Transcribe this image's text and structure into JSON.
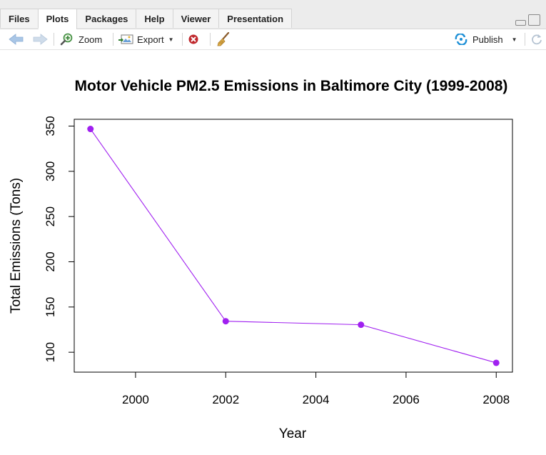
{
  "tabs": [
    {
      "label": "Files",
      "active": false
    },
    {
      "label": "Plots",
      "active": true
    },
    {
      "label": "Packages",
      "active": false
    },
    {
      "label": "Help",
      "active": false
    },
    {
      "label": "Viewer",
      "active": false
    },
    {
      "label": "Presentation",
      "active": false
    }
  ],
  "toolbar": {
    "zoom_label": "Zoom",
    "export_label": "Export",
    "publish_label": "Publish"
  },
  "icons": {
    "back": "arrow-left-icon",
    "forward": "arrow-right-icon",
    "zoom": "zoom-icon",
    "export": "export-icon",
    "remove": "remove-plot-icon",
    "clear": "broom-icon",
    "publish": "publish-icon",
    "refresh": "refresh-icon"
  },
  "colors": {
    "series": "#a020f0",
    "accent_publish": "#1c8fd6",
    "remove_red": "#c0282d"
  },
  "chart_data": {
    "type": "line",
    "title": "Motor Vehicle PM2.5 Emissions in Baltimore City (1999-2008)",
    "xlabel": "Year",
    "ylabel": "Total Emissions (Tons)",
    "x": [
      1999,
      2002,
      2005,
      2008
    ],
    "y": [
      346.8,
      134.3,
      130.4,
      88.3
    ],
    "xlim": [
      1998.64,
      2008.36
    ],
    "ylim": [
      78.0,
      357.5
    ],
    "x_ticks": [
      "2000",
      "2002",
      "2004",
      "2006",
      "2008"
    ],
    "y_ticks": [
      "100",
      "150",
      "200",
      "250",
      "300",
      "350"
    ],
    "grid": false,
    "legend": "none"
  }
}
